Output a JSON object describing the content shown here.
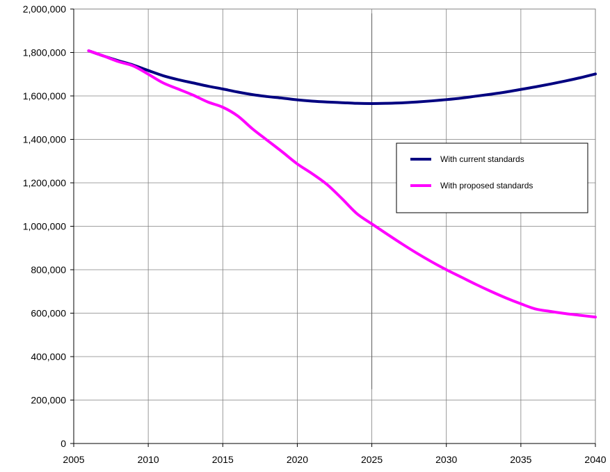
{
  "chart_data": {
    "type": "line",
    "title": "",
    "xlabel": "",
    "ylabel": "",
    "xlim": [
      2005,
      2040
    ],
    "ylim": [
      0,
      2000000
    ],
    "x_ticks": [
      2005,
      2010,
      2015,
      2020,
      2025,
      2030,
      2035,
      2040
    ],
    "x_tick_labels": [
      "2005",
      "2010",
      "2015",
      "2020",
      "2025",
      "2030",
      "2035",
      "2040"
    ],
    "y_ticks": [
      0,
      200000,
      400000,
      600000,
      800000,
      1000000,
      1200000,
      1400000,
      1600000,
      1800000,
      2000000
    ],
    "y_tick_labels": [
      "0",
      "200,000",
      "400,000",
      "600,000",
      "800,000",
      "1,000,000",
      "1,200,000",
      "1,400,000",
      "1,600,000",
      "1,800,000",
      "2,000,000"
    ],
    "grid": true,
    "legend_position": "right",
    "series": [
      {
        "name": "With current standards",
        "color": "#000080",
        "x": [
          2006,
          2007,
          2008,
          2009,
          2010,
          2011,
          2012,
          2013,
          2014,
          2015,
          2016,
          2017,
          2018,
          2019,
          2020,
          2021,
          2022,
          2023,
          2024,
          2025,
          2026,
          2027,
          2028,
          2029,
          2030,
          2031,
          2032,
          2033,
          2034,
          2035,
          2036,
          2037,
          2038,
          2039,
          2040
        ],
        "values": [
          1808000,
          1784000,
          1762000,
          1742000,
          1717000,
          1693000,
          1675000,
          1660000,
          1645000,
          1632000,
          1618000,
          1606000,
          1597000,
          1590000,
          1582000,
          1576000,
          1572000,
          1569000,
          1566000,
          1565000,
          1566000,
          1568000,
          1572000,
          1577000,
          1583000,
          1590000,
          1599000,
          1608000,
          1618000,
          1630000,
          1642000,
          1655000,
          1669000,
          1684000,
          1701000
        ]
      },
      {
        "name": "With proposed standards",
        "color": "#ff00ff",
        "x": [
          2006,
          2007,
          2008,
          2009,
          2010,
          2011,
          2012,
          2013,
          2014,
          2015,
          2016,
          2017,
          2018,
          2019,
          2020,
          2021,
          2022,
          2023,
          2024,
          2025,
          2026,
          2027,
          2028,
          2029,
          2030,
          2031,
          2032,
          2033,
          2034,
          2035,
          2036,
          2037,
          2038,
          2039,
          2040
        ],
        "values": [
          1808000,
          1784000,
          1758000,
          1738000,
          1700000,
          1660000,
          1632000,
          1604000,
          1572000,
          1548000,
          1508000,
          1448000,
          1395000,
          1342000,
          1287000,
          1242000,
          1192000,
          1127000,
          1058000,
          1011000,
          965000,
          920000,
          877000,
          837000,
          800000,
          766000,
          732000,
          700000,
          670000,
          643000,
          619000,
          608000,
          598000,
          590000,
          582000
        ]
      }
    ],
    "annotations": [
      {
        "type": "vertical-line",
        "x": 2025,
        "y_from": 250000,
        "y_to": 1980000
      }
    ]
  }
}
